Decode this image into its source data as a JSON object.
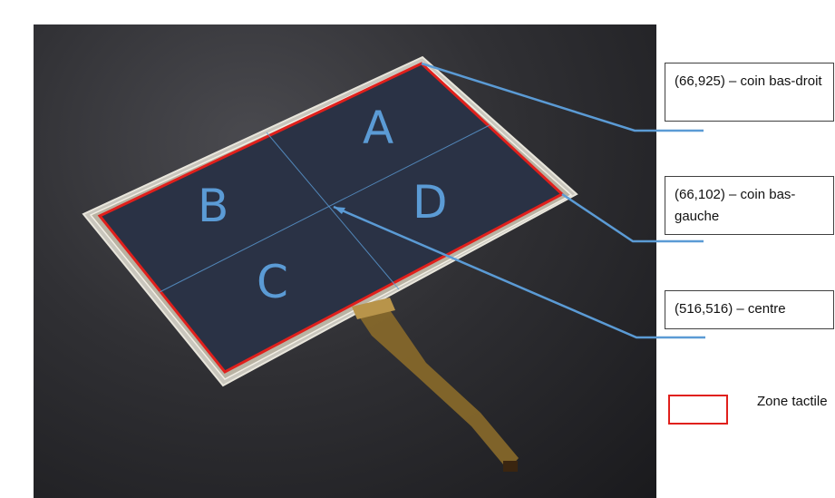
{
  "zones": {
    "a": "A",
    "b": "B",
    "c": "C",
    "d": "D"
  },
  "callouts": {
    "bottom_right": "(66,925) – coin bas-droit",
    "bottom_left": "(66,102) – coin bas-gauche",
    "center": "(516,516) – centre"
  },
  "legend": {
    "label": "Zone tactile",
    "color": "#e0201c"
  },
  "colors": {
    "leader_line": "#5b9bd5",
    "touch_zone": "#e0201c",
    "zone_letters": "#5b9bd5",
    "screen": "#2a3245"
  }
}
